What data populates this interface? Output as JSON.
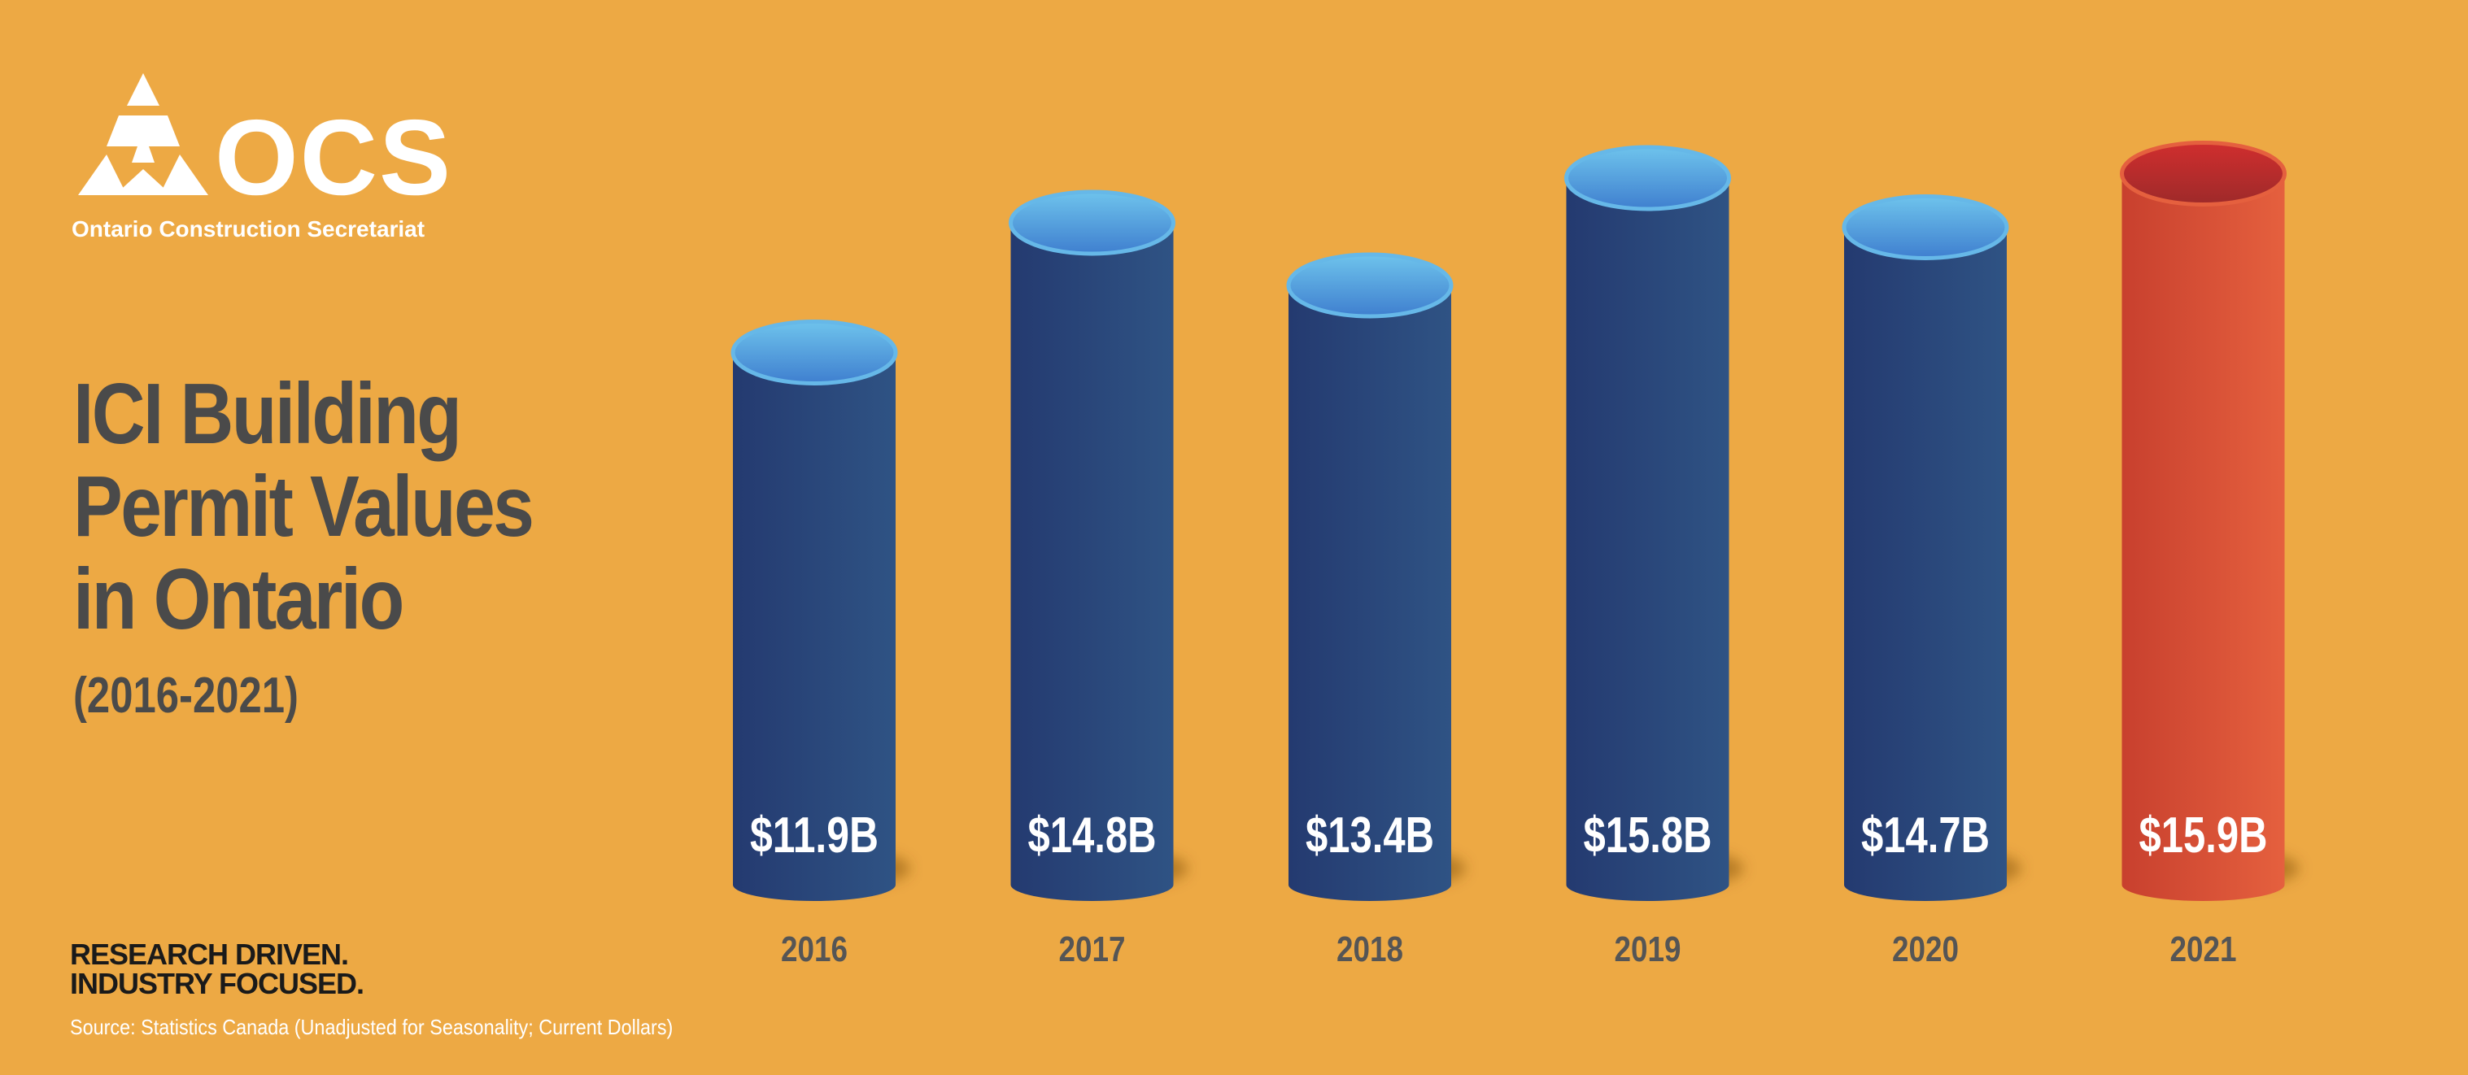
{
  "logo": {
    "text": "OCS",
    "subtitle": "Ontario Construction Secretariat",
    "color": "#ffffff"
  },
  "title_lines": [
    "ICI Building",
    "Permit Values",
    "in Ontario"
  ],
  "subtitle": "(2016-2021)",
  "tagline_lines": [
    "RESEARCH DRIVEN.",
    "INDUSTRY FOCUSED."
  ],
  "source": "Source: Statistics Canada (Unadjusted for Seasonality; Current Dollars)",
  "colors": {
    "background": "#EDA944",
    "bar": "#2A4478",
    "bar_top": "#5AA8E0",
    "highlight": "#D9553A",
    "highlight_top": "#B8302E"
  },
  "chart_data": {
    "type": "bar",
    "categories": [
      "2016",
      "2017",
      "2018",
      "2019",
      "2020",
      "2021"
    ],
    "values": [
      11.9,
      14.8,
      13.4,
      15.8,
      14.7,
      15.9
    ],
    "labels": [
      "$11.9B",
      "$14.8B",
      "$13.4B",
      "$15.8B",
      "$14.7B",
      "$15.9B"
    ],
    "unit": "$B",
    "highlight_index": 5,
    "ylim": [
      0,
      16
    ],
    "grid": false,
    "legend": "none"
  }
}
